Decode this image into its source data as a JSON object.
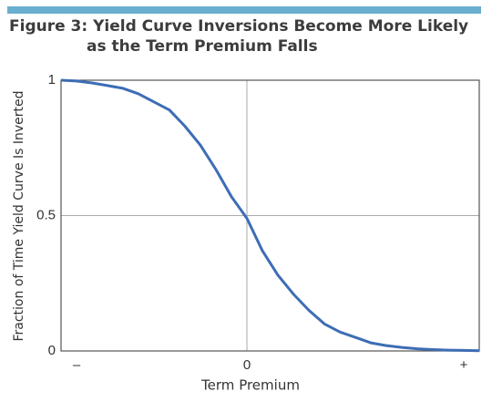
{
  "chart_data": {
    "type": "line",
    "title": "Figure 3: Yield Curve Inversions Become More Likely",
    "subtitle": "as the Term Premium Falls",
    "x_label": "Term Premium",
    "y_label": "Fraction of Time Yield Curve Is Inverted",
    "x": [
      -1.2,
      -1.1,
      -1.0,
      -0.9,
      -0.8,
      -0.7,
      -0.6,
      -0.5,
      -0.4,
      -0.3,
      -0.2,
      -0.1,
      0,
      0.1,
      0.2,
      0.3,
      0.4,
      0.5,
      0.6,
      0.7,
      0.8,
      0.9,
      1.0,
      1.1,
      1.2,
      1.3,
      1.4,
      1.5
    ],
    "values": [
      1.0,
      0.997,
      0.99,
      0.98,
      0.97,
      0.95,
      0.92,
      0.89,
      0.83,
      0.76,
      0.67,
      0.57,
      0.49,
      0.37,
      0.28,
      0.21,
      0.15,
      0.1,
      0.07,
      0.05,
      0.03,
      0.02,
      0.013,
      0.008,
      0.005,
      0.003,
      0.002,
      0.001
    ],
    "color": "#3d6db5",
    "xlim": [
      -1.2,
      1.5
    ],
    "ylim": [
      0,
      1
    ],
    "xticks": [
      {
        "value": -1.1,
        "label": "–"
      },
      0,
      {
        "value": 1.4,
        "label": "+"
      }
    ],
    "yticks": [
      0,
      0.5,
      1
    ],
    "grid": true
  }
}
